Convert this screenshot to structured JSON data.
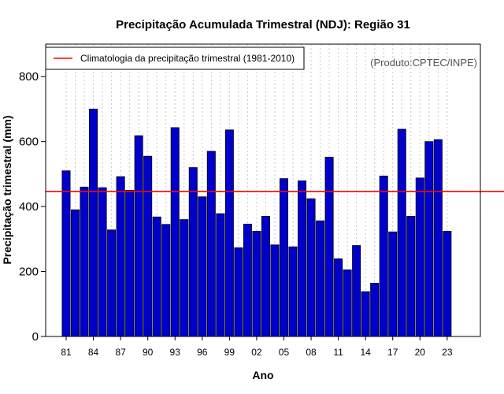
{
  "chart_data": {
    "type": "bar",
    "title": "Precipitação Acumulada Trimestral (NDJ): Região 31",
    "xlabel": "Ano",
    "ylabel": "Precipitação trimestral (mm)",
    "ylim": [
      0,
      900
    ],
    "yticks": [
      0,
      200,
      400,
      600,
      800
    ],
    "categories": [
      "81",
      "82",
      "83",
      "84",
      "85",
      "86",
      "87",
      "88",
      "89",
      "90",
      "91",
      "92",
      "93",
      "94",
      "95",
      "96",
      "97",
      "98",
      "99",
      "00",
      "01",
      "02",
      "03",
      "04",
      "05",
      "06",
      "07",
      "08",
      "09",
      "10",
      "11",
      "12",
      "13",
      "14",
      "15",
      "16",
      "17",
      "18",
      "19",
      "20",
      "21",
      "22",
      "23"
    ],
    "xtick_labels": [
      "81",
      "84",
      "87",
      "90",
      "93",
      "96",
      "99",
      "02",
      "05",
      "08",
      "11",
      "14",
      "17",
      "20",
      "23"
    ],
    "values": [
      510,
      390,
      460,
      700,
      458,
      328,
      492,
      450,
      618,
      555,
      368,
      345,
      643,
      360,
      520,
      430,
      570,
      378,
      636,
      273,
      346,
      324,
      370,
      282,
      486,
      276,
      479,
      424,
      356,
      552,
      239,
      205,
      280,
      138,
      164,
      494,
      322,
      638,
      370,
      488,
      600,
      606,
      324
    ],
    "climatology": 446,
    "legend": "Climatologia da precipitação trimestral (1981-2010)",
    "legend_position": "top-left",
    "source": "(Produto:CPTEC/INPE)",
    "grid": "vertical-dotted",
    "colors": {
      "bar": "#0000cd",
      "climatology": "#ff0000",
      "grid": "#c8c8c8"
    }
  }
}
